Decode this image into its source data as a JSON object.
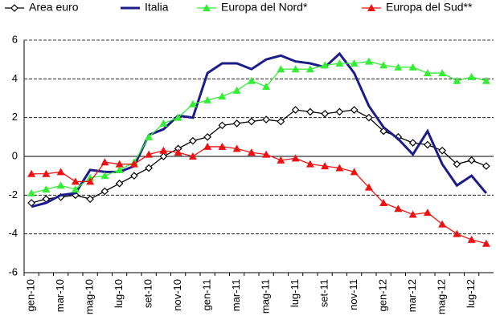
{
  "chart_data": {
    "type": "line",
    "categories": [
      "gen-10",
      null,
      "mar-10",
      null,
      "mag-10",
      null,
      "lug-10",
      null,
      "set-10",
      null,
      "nov-10",
      null,
      "gen-11",
      null,
      "mar-11",
      null,
      "mag-11",
      null,
      "lug-11",
      null,
      "set-11",
      null,
      "nov-11",
      null,
      "gen-12",
      null,
      "mar-12",
      null,
      "mag-12",
      null,
      "lug-12",
      null
    ],
    "series": [
      {
        "name": "Area euro",
        "color": "#000000",
        "marker": "diamond",
        "values": [
          -2.4,
          -2.2,
          -2.1,
          -2.0,
          -2.2,
          -1.8,
          -1.4,
          -1.0,
          -0.6,
          0.0,
          0.4,
          0.8,
          1.0,
          1.6,
          1.7,
          1.8,
          1.9,
          1.8,
          2.4,
          2.3,
          2.2,
          2.3,
          2.4,
          2.0,
          1.3,
          1.0,
          0.7,
          0.6,
          0.3,
          -0.4,
          -0.2,
          -0.5
        ]
      },
      {
        "name": "Italia",
        "color": "#1c1c8a",
        "marker": "none",
        "values": [
          -2.6,
          -2.4,
          -2.0,
          -1.9,
          -0.7,
          -0.8,
          -0.8,
          -0.5,
          1.1,
          1.4,
          2.1,
          2.0,
          4.3,
          4.8,
          4.8,
          4.5,
          5.0,
          5.2,
          4.9,
          4.8,
          4.6,
          5.3,
          4.3,
          2.6,
          1.5,
          0.9,
          0.1,
          1.3,
          -0.4,
          -1.5,
          -1.0,
          -1.9
        ]
      },
      {
        "name": "Europa del Nord*",
        "color": "#33ee33",
        "marker": "triangle",
        "values": [
          -1.9,
          -1.7,
          -1.5,
          -1.7,
          -1.1,
          -1.0,
          -0.7,
          -0.3,
          1.0,
          1.7,
          2.0,
          2.7,
          2.9,
          3.1,
          3.4,
          3.9,
          3.6,
          4.5,
          4.5,
          4.5,
          4.7,
          4.8,
          4.8,
          4.9,
          4.7,
          4.6,
          4.6,
          4.3,
          4.3,
          3.9,
          4.1,
          3.9
        ]
      },
      {
        "name": "Europa del Sud**",
        "color": "#ee1111",
        "marker": "triangle",
        "values": [
          -0.9,
          -0.9,
          -0.8,
          -1.3,
          -1.3,
          -0.3,
          -0.4,
          -0.4,
          0.1,
          0.3,
          0.2,
          0.0,
          0.5,
          0.5,
          0.4,
          0.2,
          0.1,
          -0.2,
          -0.1,
          -0.4,
          -0.5,
          -0.6,
          -0.8,
          -1.6,
          -2.4,
          -2.7,
          -3.0,
          -2.9,
          -3.5,
          -4.0,
          -4.3,
          -4.5
        ]
      }
    ],
    "ylim": [
      -6,
      6
    ],
    "yticks": [
      -6,
      -4,
      -2,
      0,
      2,
      4,
      6
    ],
    "grid": true
  }
}
